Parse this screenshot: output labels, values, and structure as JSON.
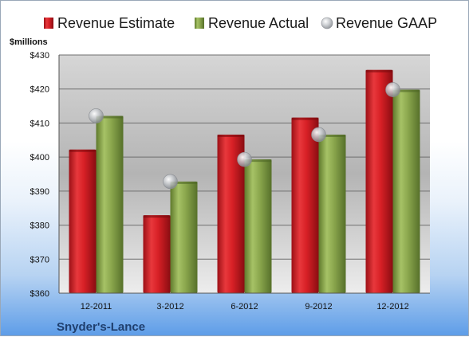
{
  "chart_data": {
    "type": "bar",
    "categories": [
      "12-2011",
      "3-2012",
      "6-2012",
      "9-2012",
      "12-2012"
    ],
    "series": [
      {
        "name": "Revenue Estimate",
        "values": [
          402.2,
          382.9,
          406.6,
          411.6,
          425.6
        ],
        "color": "#d42026",
        "mark": "bar"
      },
      {
        "name": "Revenue Actual",
        "values": [
          412.1,
          392.8,
          399.3,
          406.6,
          419.8
        ],
        "color": "#8aa44c",
        "mark": "bar"
      },
      {
        "name": "Revenue GAAP",
        "values": [
          412.1,
          392.8,
          399.3,
          406.6,
          419.8
        ],
        "color": "#b5b8bd",
        "mark": "bubble"
      }
    ],
    "ylim": [
      360,
      430
    ],
    "yticks": [
      360,
      370,
      380,
      390,
      400,
      410,
      420,
      430
    ],
    "ytick_labels": [
      "$360",
      "$370",
      "$380",
      "$390",
      "$400",
      "$410",
      "$420",
      "$430"
    ],
    "yunit": "$millions",
    "title": "",
    "xlabel": "",
    "ylabel": "",
    "grid": true,
    "legend_position": "top",
    "company": "Snyder's-Lance"
  }
}
